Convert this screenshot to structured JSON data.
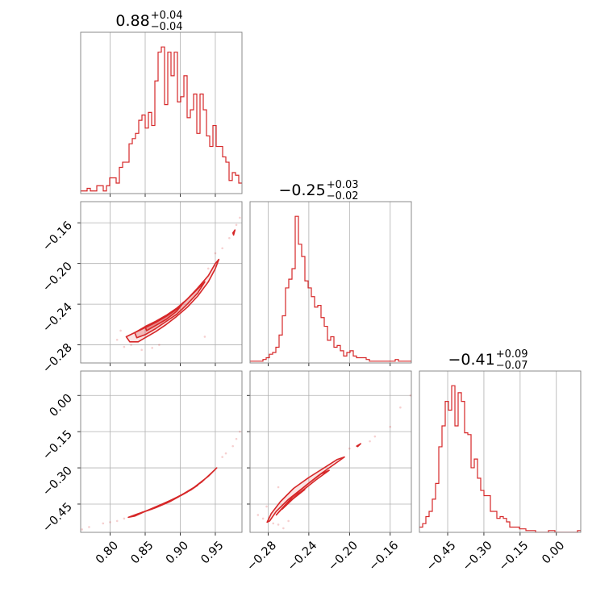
{
  "chart_data": {
    "type": "corner",
    "color": "#d62728",
    "grid": true,
    "parameters": [
      {
        "title": {
          "median": "0.88",
          "plus": "+0.04",
          "minus": "−0.04"
        },
        "range": [
          0.758,
          0.988
        ],
        "ticks": [
          {
            "v": 0.8,
            "label": "0.80"
          },
          {
            "v": 0.85,
            "label": "0.85"
          },
          {
            "v": 0.9,
            "label": "0.90"
          },
          {
            "v": 0.95,
            "label": "0.95"
          }
        ]
      },
      {
        "title": {
          "median": "−0.25",
          "plus": "+0.03",
          "minus": "−0.02"
        },
        "range": [
          -0.2978,
          -0.1392
        ],
        "ticks": [
          {
            "v": -0.28,
            "label": "−0.28"
          },
          {
            "v": -0.24,
            "label": "−0.24"
          },
          {
            "v": -0.2,
            "label": "−0.20"
          },
          {
            "v": -0.16,
            "label": "−0.16"
          }
        ]
      },
      {
        "title": {
          "median": "−0.41",
          "plus": "+0.09",
          "minus": "−0.07"
        },
        "range": [
          -0.567,
          0.101
        ],
        "ticks": [
          {
            "v": -0.45,
            "label": "−0.45"
          },
          {
            "v": -0.3,
            "label": "−0.30"
          },
          {
            "v": -0.15,
            "label": "−0.15"
          },
          {
            "v": 0.0,
            "label": "0.00"
          }
        ]
      }
    ],
    "histograms": [
      {
        "param": 0,
        "bins": [
          0.758,
          0.7626,
          0.7672,
          0.7718,
          0.7764,
          0.781,
          0.7856,
          0.7902,
          0.7948,
          0.7994,
          0.804,
          0.8086,
          0.8132,
          0.8178,
          0.8224,
          0.827,
          0.8316,
          0.8362,
          0.8408,
          0.8454,
          0.85,
          0.8546,
          0.8592,
          0.8638,
          0.8684,
          0.873,
          0.8776,
          0.8822,
          0.8868,
          0.8914,
          0.896,
          0.9006,
          0.9052,
          0.9098,
          0.9144,
          0.919,
          0.9236,
          0.9282,
          0.9328,
          0.9374,
          0.942,
          0.9466,
          0.9512,
          0.9558,
          0.9604,
          0.965,
          0.9696,
          0.9742,
          0.9788,
          0.9834,
          0.988
        ],
        "counts": [
          1,
          1,
          2,
          1,
          1,
          3,
          3,
          1,
          3,
          6,
          6,
          4,
          10,
          12,
          12,
          19,
          21,
          23,
          28,
          30,
          25,
          31,
          26,
          43,
          54,
          56,
          34,
          54,
          45,
          54,
          35,
          37,
          45,
          29,
          32,
          38,
          23,
          38,
          32,
          22,
          18,
          26,
          18,
          18,
          14,
          12,
          5,
          8,
          7,
          4
        ]
      },
      {
        "param": 1,
        "bins": [
          -0.2978,
          -0.29463,
          -0.29146,
          -0.28828,
          -0.28511,
          -0.28194,
          -0.27877,
          -0.2756,
          -0.27242,
          -0.26925,
          -0.26608,
          -0.26291,
          -0.25974,
          -0.25656,
          -0.25339,
          -0.25022,
          -0.24705,
          -0.24388,
          -0.2407,
          -0.23753,
          -0.23436,
          -0.23119,
          -0.22802,
          -0.22484,
          -0.22167,
          -0.2185,
          -0.21533,
          -0.21216,
          -0.20898,
          -0.20581,
          -0.20264,
          -0.19947,
          -0.1963,
          -0.19312,
          -0.18995,
          -0.18678,
          -0.18361,
          -0.18044,
          -0.17726,
          -0.17409,
          -0.17092,
          -0.16775,
          -0.16458,
          -0.1614,
          -0.15823,
          -0.15506,
          -0.15189,
          -0.14872,
          -0.14554,
          -0.14237,
          -0.1392
        ],
        "counts": [
          1,
          1,
          1,
          1,
          2,
          3,
          5,
          6,
          9,
          16,
          27,
          43,
          48,
          54,
          84,
          68,
          61,
          47,
          43,
          38,
          32,
          33,
          26,
          21,
          13,
          15,
          9,
          10,
          7,
          4,
          6,
          7,
          4,
          3,
          3,
          3,
          2,
          1,
          1,
          1,
          1,
          1,
          1,
          1,
          1,
          2,
          1,
          1,
          1,
          1
        ]
      },
      {
        "param": 2,
        "bins": [
          -0.567,
          -0.5536,
          -0.5403,
          -0.5269,
          -0.5136,
          -0.5002,
          -0.4868,
          -0.4735,
          -0.4601,
          -0.4468,
          -0.4334,
          -0.42,
          -0.4067,
          -0.3933,
          -0.38,
          -0.3666,
          -0.3532,
          -0.3399,
          -0.3265,
          -0.3132,
          -0.2998,
          -0.2864,
          -0.2731,
          -0.2597,
          -0.2464,
          -0.233,
          -0.2196,
          -0.2063,
          -0.1929,
          -0.1796,
          -0.1662,
          -0.1528,
          -0.1395,
          -0.1261,
          -0.1128,
          -0.0994,
          -0.086,
          -0.0727,
          -0.0593,
          -0.046,
          -0.0326,
          -0.0192,
          -0.0059,
          0.0075,
          0.0208,
          0.0342,
          0.0476,
          0.0609,
          0.0743,
          0.0876,
          0.101
        ],
        "counts": [
          3,
          5,
          9,
          12,
          19,
          28,
          49,
          61,
          75,
          70,
          84,
          61,
          80,
          75,
          57,
          56,
          37,
          42,
          31,
          24,
          21,
          21,
          12,
          12,
          8,
          9,
          8,
          6,
          3,
          3,
          3,
          2,
          2,
          1,
          1,
          1,
          0,
          0,
          0,
          0,
          1,
          1,
          0,
          0,
          0,
          0,
          0,
          0,
          0,
          1
        ]
      }
    ],
    "pairs": [
      {
        "x_param": 0,
        "y_param": 1,
        "contours": [
          [
            [
              0.823,
              -0.272
            ],
            [
              0.835,
              -0.268
            ],
            [
              0.85,
              -0.263
            ],
            [
              0.865,
              -0.258
            ],
            [
              0.88,
              -0.252
            ],
            [
              0.895,
              -0.245
            ],
            [
              0.91,
              -0.235
            ],
            [
              0.925,
              -0.224
            ],
            [
              0.94,
              -0.212
            ],
            [
              0.95,
              -0.2
            ],
            [
              0.955,
              -0.196
            ],
            [
              0.95,
              -0.205
            ],
            [
              0.94,
              -0.218
            ],
            [
              0.925,
              -0.232
            ],
            [
              0.91,
              -0.243
            ],
            [
              0.895,
              -0.252
            ],
            [
              0.88,
              -0.26
            ],
            [
              0.865,
              -0.267
            ],
            [
              0.85,
              -0.273
            ],
            [
              0.84,
              -0.277
            ],
            [
              0.828,
              -0.277
            ],
            [
              0.823,
              -0.272
            ]
          ],
          [
            [
              0.835,
              -0.268
            ],
            [
              0.85,
              -0.262
            ],
            [
              0.865,
              -0.257
            ],
            [
              0.88,
              -0.251
            ],
            [
              0.895,
              -0.244
            ],
            [
              0.91,
              -0.235
            ],
            [
              0.925,
              -0.225
            ],
            [
              0.935,
              -0.218
            ],
            [
              0.925,
              -0.229
            ],
            [
              0.91,
              -0.24
            ],
            [
              0.895,
              -0.25
            ],
            [
              0.88,
              -0.257
            ],
            [
              0.865,
              -0.264
            ],
            [
              0.85,
              -0.27
            ],
            [
              0.838,
              -0.273
            ],
            [
              0.835,
              -0.268
            ]
          ],
          [
            [
              0.85,
              -0.262
            ],
            [
              0.865,
              -0.257
            ],
            [
              0.88,
              -0.251
            ],
            [
              0.895,
              -0.244
            ],
            [
              0.905,
              -0.238
            ],
            [
              0.895,
              -0.247
            ],
            [
              0.88,
              -0.255
            ],
            [
              0.865,
              -0.261
            ],
            [
              0.852,
              -0.266
            ],
            [
              0.85,
              -0.262
            ]
          ],
          [
            [
              0.975,
              -0.17
            ],
            [
              0.978,
              -0.167
            ],
            [
              0.976,
              -0.172
            ],
            [
              0.975,
              -0.17
            ]
          ]
        ],
        "scatter": [
          [
            0.985,
            -0.155
          ],
          [
            0.98,
            -0.162
          ],
          [
            0.97,
            -0.175
          ],
          [
            0.96,
            -0.185
          ],
          [
            0.935,
            -0.272
          ],
          [
            0.86,
            -0.283
          ],
          [
            0.845,
            -0.285
          ],
          [
            0.83,
            -0.28
          ],
          [
            0.815,
            -0.266
          ],
          [
            0.82,
            -0.282
          ],
          [
            0.87,
            -0.28
          ],
          [
            0.81,
            -0.275
          ],
          [
            0.95,
            -0.19
          ],
          [
            0.94,
            -0.205
          ]
        ]
      },
      {
        "x_param": 0,
        "y_param": 2,
        "contours": [
          [
            [
              0.826,
              -0.505
            ],
            [
              0.84,
              -0.49
            ],
            [
              0.86,
              -0.47
            ],
            [
              0.88,
              -0.445
            ],
            [
              0.9,
              -0.415
            ],
            [
              0.92,
              -0.38
            ],
            [
              0.94,
              -0.335
            ],
            [
              0.952,
              -0.3
            ],
            [
              0.945,
              -0.32
            ],
            [
              0.93,
              -0.36
            ],
            [
              0.91,
              -0.4
            ],
            [
              0.89,
              -0.43
            ],
            [
              0.87,
              -0.455
            ],
            [
              0.85,
              -0.48
            ],
            [
              0.835,
              -0.5
            ],
            [
              0.826,
              -0.505
            ]
          ],
          [
            [
              0.845,
              -0.485
            ],
            [
              0.865,
              -0.465
            ],
            [
              0.885,
              -0.44
            ],
            [
              0.905,
              -0.408
            ],
            [
              0.925,
              -0.372
            ],
            [
              0.915,
              -0.392
            ],
            [
              0.895,
              -0.422
            ],
            [
              0.875,
              -0.45
            ],
            [
              0.855,
              -0.475
            ],
            [
              0.845,
              -0.485
            ]
          ]
        ],
        "scatter": [
          [
            0.79,
            -0.53
          ],
          [
            0.8,
            -0.525
          ],
          [
            0.82,
            -0.51
          ],
          [
            0.76,
            -0.555
          ],
          [
            0.77,
            -0.545
          ],
          [
            0.96,
            -0.255
          ],
          [
            0.965,
            -0.24
          ],
          [
            0.975,
            -0.21
          ],
          [
            0.985,
            -0.15
          ],
          [
            0.98,
            -0.18
          ],
          [
            0.99,
            -0.09
          ],
          [
            0.81,
            -0.52
          ]
        ]
      },
      {
        "x_param": 1,
        "y_param": 2,
        "contours": [
          [
            [
              -0.2785,
              -0.52
            ],
            [
              -0.272,
              -0.48
            ],
            [
              -0.26,
              -0.43
            ],
            [
              -0.245,
              -0.38
            ],
            [
              -0.23,
              -0.33
            ],
            [
              -0.215,
              -0.285
            ],
            [
              -0.205,
              -0.255
            ],
            [
              -0.212,
              -0.265
            ],
            [
              -0.225,
              -0.3
            ],
            [
              -0.24,
              -0.34
            ],
            [
              -0.255,
              -0.385
            ],
            [
              -0.268,
              -0.44
            ],
            [
              -0.277,
              -0.49
            ],
            [
              -0.281,
              -0.525
            ],
            [
              -0.2785,
              -0.52
            ]
          ],
          [
            [
              -0.272,
              -0.495
            ],
            [
              -0.262,
              -0.45
            ],
            [
              -0.248,
              -0.4
            ],
            [
              -0.233,
              -0.35
            ],
            [
              -0.22,
              -0.31
            ],
            [
              -0.228,
              -0.325
            ],
            [
              -0.242,
              -0.37
            ],
            [
              -0.256,
              -0.42
            ],
            [
              -0.268,
              -0.475
            ],
            [
              -0.272,
              -0.495
            ]
          ],
          [
            [
              -0.266,
              -0.47
            ],
            [
              -0.256,
              -0.43
            ],
            [
              -0.244,
              -0.39
            ],
            [
              -0.25,
              -0.405
            ],
            [
              -0.26,
              -0.445
            ],
            [
              -0.266,
              -0.47
            ]
          ],
          [
            [
              -0.193,
              -0.21
            ],
            [
              -0.189,
              -0.2
            ],
            [
              -0.192,
              -0.212
            ],
            [
              -0.193,
              -0.21
            ]
          ]
        ],
        "scatter": [
          [
            -0.285,
            -0.51
          ],
          [
            -0.29,
            -0.495
          ],
          [
            -0.275,
            -0.53
          ],
          [
            -0.27,
            -0.535
          ],
          [
            -0.265,
            -0.55
          ],
          [
            -0.2815,
            -0.46
          ],
          [
            -0.26,
            -0.52
          ],
          [
            -0.18,
            -0.19
          ],
          [
            -0.175,
            -0.17
          ],
          [
            -0.16,
            -0.13
          ],
          [
            -0.15,
            -0.05
          ],
          [
            -0.14,
            0.0
          ],
          [
            -0.2,
            -0.22
          ],
          [
            -0.27,
            -0.38
          ]
        ]
      }
    ]
  }
}
